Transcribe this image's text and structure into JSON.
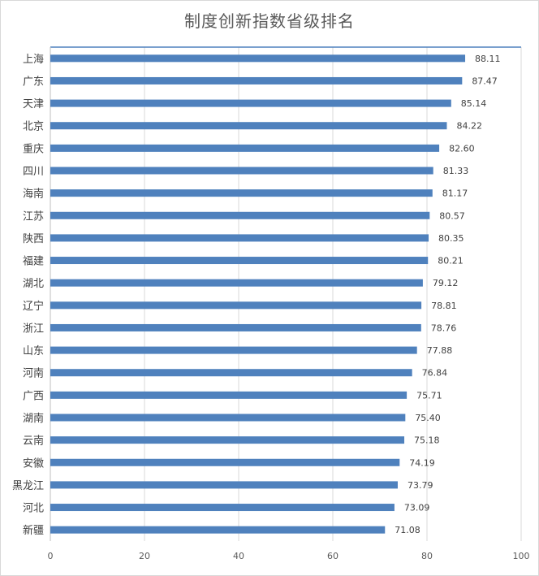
{
  "chart_data": {
    "type": "bar",
    "orientation": "horizontal",
    "title": "制度创新指数省级排名",
    "categories": [
      "上海",
      "广东",
      "天津",
      "北京",
      "重庆",
      "四川",
      "海南",
      "江苏",
      "陕西",
      "福建",
      "湖北",
      "辽宁",
      "浙江",
      "山东",
      "河南",
      "广西",
      "湖南",
      "云南",
      "安徽",
      "黑龙江",
      "河北",
      "新疆"
    ],
    "values": [
      88.11,
      87.47,
      85.14,
      84.22,
      82.6,
      81.33,
      81.17,
      80.57,
      80.35,
      80.21,
      79.12,
      78.81,
      78.76,
      77.88,
      76.84,
      75.71,
      75.4,
      75.18,
      74.19,
      73.79,
      73.09,
      71.08
    ],
    "value_labels": [
      "88.11",
      "87.47",
      "85.14",
      "84.22",
      "82.60",
      "81.33",
      "81.17",
      "80.57",
      "80.35",
      "80.21",
      "79.12",
      "78.81",
      "78.76",
      "77.88",
      "76.84",
      "75.71",
      "75.40",
      "75.18",
      "74.19",
      "73.79",
      "73.09",
      "71.08"
    ],
    "xlim": [
      0,
      100
    ],
    "xticks": [
      0,
      20,
      40,
      60,
      80,
      100
    ],
    "grid": true,
    "legend": "none",
    "bar_color": "#4f81bd"
  }
}
